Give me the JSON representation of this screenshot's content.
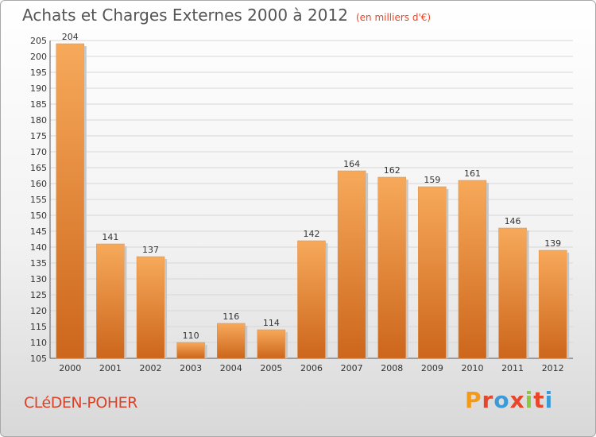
{
  "header": {
    "title": "Achats et Charges Externes 2000 à 2012",
    "unit": "(en milliers d'€)"
  },
  "footer": {
    "commune": "CLéDEN-POHER",
    "logo": [
      "P",
      "r",
      "o",
      "x",
      "i",
      "t",
      "i"
    ]
  },
  "colors": {
    "bar_light": "#f7a95a",
    "bar_dark": "#cc661c",
    "grid": "#d7d7d7",
    "title": "#555555",
    "commune": "#d9432a"
  },
  "chart_data": {
    "type": "bar",
    "title": "Achats et Charges Externes 2000 à 2012",
    "subtitle": "(en milliers d'€)",
    "categories": [
      "2000",
      "2001",
      "2002",
      "2003",
      "2004",
      "2005",
      "2006",
      "2007",
      "2008",
      "2009",
      "2010",
      "2011",
      "2012"
    ],
    "values": [
      204,
      141,
      137,
      110,
      116,
      114,
      142,
      164,
      162,
      159,
      161,
      146,
      139
    ],
    "ylim": [
      105,
      205
    ],
    "ytick_step": 5,
    "grid": true,
    "data_labels": true,
    "legend": "none"
  }
}
